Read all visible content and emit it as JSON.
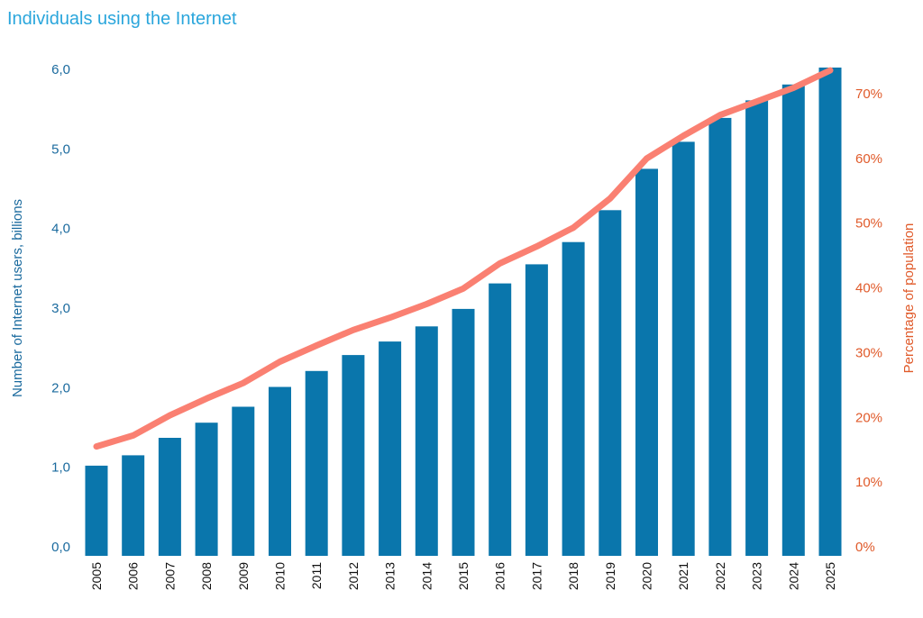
{
  "chart_data": {
    "type": "bar",
    "title": "Individuals using the Internet",
    "xlabel": "",
    "ylabel": "Number of Internet users, billions",
    "y2label": "Percentage of population",
    "categories": [
      "2005",
      "2006",
      "2007",
      "2008",
      "2009",
      "2010",
      "2011",
      "2012",
      "2013",
      "2014",
      "2015",
      "2016",
      "2017",
      "2018",
      "2019",
      "2020",
      "2021",
      "2022",
      "2023",
      "2024",
      "2025"
    ],
    "series": [
      {
        "type": "bar",
        "axis": "left",
        "values": [
          1.02,
          1.15,
          1.37,
          1.56,
          1.76,
          2.01,
          2.21,
          2.41,
          2.58,
          2.77,
          2.99,
          3.31,
          3.55,
          3.83,
          4.23,
          4.75,
          5.09,
          5.39,
          5.61,
          5.81,
          6.04
        ]
      },
      {
        "type": "line",
        "axis": "right",
        "values": [
          15.5,
          17.2,
          20.3,
          22.9,
          25.3,
          28.6,
          31.1,
          33.5,
          35.4,
          37.5,
          39.9,
          43.8,
          46.4,
          49.3,
          53.8,
          60.0,
          63.5,
          66.7,
          68.8,
          70.9,
          73.6
        ]
      }
    ],
    "ylim": [
      0,
      6.04
    ],
    "y_ticks": [
      "0,0",
      "1,0",
      "2,0",
      "3,0",
      "4,0",
      "5,0",
      "6,0"
    ],
    "y2lim": [
      0,
      74
    ],
    "y2_ticks": [
      "0%",
      "10%",
      "20%",
      "30%",
      "40%",
      "50%",
      "60%",
      "70%"
    ],
    "colors": {
      "bars": "#0a76ac",
      "line": "#fa8072",
      "title": "#2aa6dc",
      "left_axis": "#1a6a9e",
      "right_axis": "#e05a2a"
    },
    "grid": false,
    "legend": "none"
  }
}
